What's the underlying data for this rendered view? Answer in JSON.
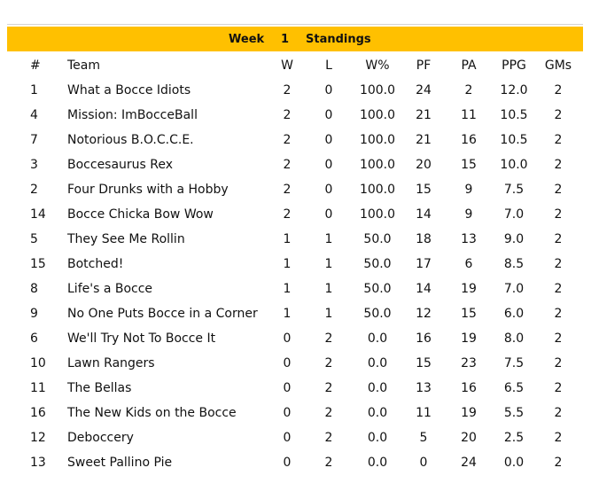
{
  "banner": {
    "week_label": "Week",
    "week_number": "1",
    "title": "Standings"
  },
  "headers": {
    "rank": "#",
    "team": "Team",
    "w": "W",
    "l": "L",
    "wpct": "W%",
    "pf": "PF",
    "pa": "PA",
    "ppg": "PPG",
    "gms": "GMs"
  },
  "rows": [
    {
      "rank": "1",
      "team": "What a Bocce Idiots",
      "w": "2",
      "l": "0",
      "wpct": "100.0",
      "pf": "24",
      "pa": "2",
      "ppg": "12.0",
      "gms": "2"
    },
    {
      "rank": "4",
      "team": "Mission: ImBocceBall",
      "w": "2",
      "l": "0",
      "wpct": "100.0",
      "pf": "21",
      "pa": "11",
      "ppg": "10.5",
      "gms": "2"
    },
    {
      "rank": "7",
      "team": "Notorious B.O.C.C.E.",
      "w": "2",
      "l": "0",
      "wpct": "100.0",
      "pf": "21",
      "pa": "16",
      "ppg": "10.5",
      "gms": "2"
    },
    {
      "rank": "3",
      "team": "Boccesaurus Rex",
      "w": "2",
      "l": "0",
      "wpct": "100.0",
      "pf": "20",
      "pa": "15",
      "ppg": "10.0",
      "gms": "2"
    },
    {
      "rank": "2",
      "team": "Four Drunks with a Hobby",
      "w": "2",
      "l": "0",
      "wpct": "100.0",
      "pf": "15",
      "pa": "9",
      "ppg": "7.5",
      "gms": "2"
    },
    {
      "rank": "14",
      "team": "Bocce Chicka Bow Wow",
      "w": "2",
      "l": "0",
      "wpct": "100.0",
      "pf": "14",
      "pa": "9",
      "ppg": "7.0",
      "gms": "2"
    },
    {
      "rank": "5",
      "team": "They See Me Rollin",
      "w": "1",
      "l": "1",
      "wpct": "50.0",
      "pf": "18",
      "pa": "13",
      "ppg": "9.0",
      "gms": "2"
    },
    {
      "rank": "15",
      "team": "Botched!",
      "w": "1",
      "l": "1",
      "wpct": "50.0",
      "pf": "17",
      "pa": "6",
      "ppg": "8.5",
      "gms": "2"
    },
    {
      "rank": "8",
      "team": "Life's a Bocce",
      "w": "1",
      "l": "1",
      "wpct": "50.0",
      "pf": "14",
      "pa": "19",
      "ppg": "7.0",
      "gms": "2"
    },
    {
      "rank": "9",
      "team": "No One Puts Bocce in a Corner",
      "w": "1",
      "l": "1",
      "wpct": "50.0",
      "pf": "12",
      "pa": "15",
      "ppg": "6.0",
      "gms": "2"
    },
    {
      "rank": "6",
      "team": "We'll Try Not To Bocce It",
      "w": "0",
      "l": "2",
      "wpct": "0.0",
      "pf": "16",
      "pa": "19",
      "ppg": "8.0",
      "gms": "2"
    },
    {
      "rank": "10",
      "team": "Lawn Rangers",
      "w": "0",
      "l": "2",
      "wpct": "0.0",
      "pf": "15",
      "pa": "23",
      "ppg": "7.5",
      "gms": "2"
    },
    {
      "rank": "11",
      "team": "The Bellas",
      "w": "0",
      "l": "2",
      "wpct": "0.0",
      "pf": "13",
      "pa": "16",
      "ppg": "6.5",
      "gms": "2"
    },
    {
      "rank": "16",
      "team": "The New Kids on the Bocce",
      "w": "0",
      "l": "2",
      "wpct": "0.0",
      "pf": "11",
      "pa": "19",
      "ppg": "5.5",
      "gms": "2"
    },
    {
      "rank": "12",
      "team": "Deboccery",
      "w": "0",
      "l": "2",
      "wpct": "0.0",
      "pf": "5",
      "pa": "20",
      "ppg": "2.5",
      "gms": "2"
    },
    {
      "rank": "13",
      "team": "Sweet Pallino Pie",
      "w": "0",
      "l": "2",
      "wpct": "0.0",
      "pf": "0",
      "pa": "24",
      "ppg": "0.0",
      "gms": "2"
    }
  ]
}
